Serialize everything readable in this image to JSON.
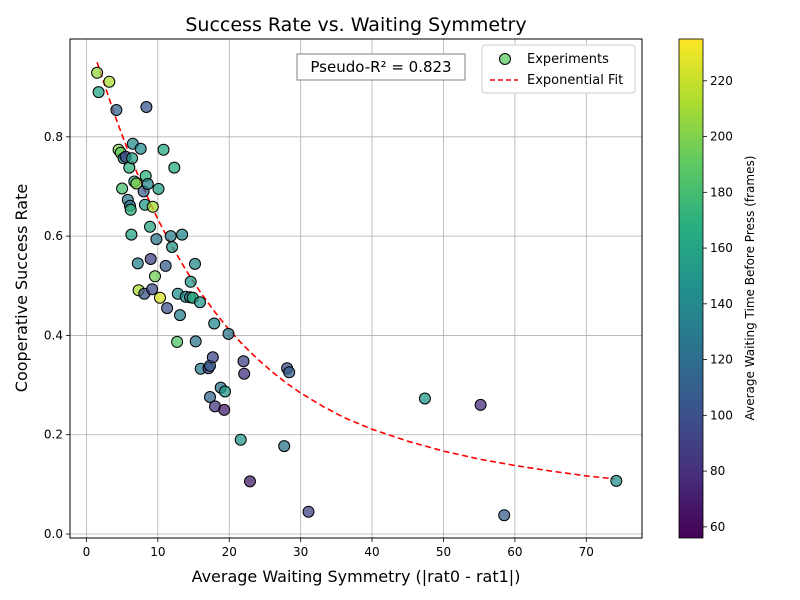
{
  "chart_data": {
    "type": "scatter",
    "title": "Success Rate vs. Waiting Symmetry",
    "xlabel": "Average Waiting Symmetry (|rat0 - rat1|)",
    "ylabel": "Cooperative Success Rate",
    "xlim": [
      -2.3,
      77.8
    ],
    "ylim": [
      -0.008,
      0.997
    ],
    "xticks": [
      0,
      10,
      20,
      30,
      40,
      50,
      60,
      70
    ],
    "yticks": [
      0.0,
      0.2,
      0.4,
      0.6,
      0.8
    ],
    "ytick_labels": [
      "0.0",
      "0.2",
      "0.4",
      "0.6",
      "0.8"
    ],
    "grid": true,
    "annotation": "Pseudo-R² = 0.823",
    "legend": {
      "placement": "upper-right",
      "entries": [
        {
          "label": "Experiments",
          "kind": "marker"
        },
        {
          "label": "Exponential Fit",
          "kind": "dashed-line"
        }
      ]
    },
    "colorbar": {
      "label": "Average Waiting Time Before Press (frames)",
      "range": [
        56,
        235
      ],
      "ticks": [
        60,
        80,
        100,
        120,
        140,
        160,
        180,
        200,
        220
      ],
      "colormap": "viridis"
    },
    "fit": {
      "name": "Exponential Fit",
      "color": "#ff0000",
      "x": [
        1.5,
        4,
        6,
        8,
        10,
        12,
        14,
        16,
        18,
        20,
        22,
        24,
        26,
        28,
        30,
        33,
        36,
        40,
        45,
        50,
        55,
        60,
        65,
        70,
        74
      ],
      "y": [
        0.95,
        0.842,
        0.765,
        0.696,
        0.634,
        0.579,
        0.53,
        0.486,
        0.447,
        0.411,
        0.38,
        0.352,
        0.327,
        0.304,
        0.284,
        0.258,
        0.235,
        0.211,
        0.187,
        0.167,
        0.151,
        0.138,
        0.127,
        0.117,
        0.111
      ]
    },
    "series": [
      {
        "name": "Experiments",
        "x": [
          1.5,
          1.7,
          3.2,
          4.2,
          4.5,
          4.8,
          5.0,
          5.2,
          5.5,
          5.8,
          6.0,
          6.1,
          6.2,
          6.3,
          6.4,
          6.5,
          6.7,
          7.0,
          7.2,
          7.3,
          7.6,
          8.0,
          8.1,
          8.2,
          8.3,
          8.4,
          8.6,
          8.9,
          9.0,
          9.2,
          9.3,
          9.6,
          9.8,
          10.1,
          10.3,
          10.8,
          11.1,
          11.3,
          11.8,
          12.0,
          12.3,
          12.7,
          12.8,
          13.1,
          13.4,
          13.9,
          14.5,
          14.6,
          14.9,
          15.2,
          15.3,
          15.9,
          16.0,
          17.1,
          17.3,
          17.3,
          17.7,
          17.9,
          18.0,
          18.8,
          19.3,
          19.4,
          19.9,
          21.6,
          22.0,
          22.1,
          22.9,
          27.7,
          28.1,
          28.4,
          31.1,
          47.4,
          55.2,
          58.5,
          74.2
        ],
        "y": [
          0.929,
          0.89,
          0.911,
          0.854,
          0.774,
          0.768,
          0.696,
          0.757,
          0.76,
          0.673,
          0.738,
          0.661,
          0.653,
          0.603,
          0.757,
          0.786,
          0.71,
          0.706,
          0.545,
          0.491,
          0.776,
          0.69,
          0.484,
          0.663,
          0.721,
          0.86,
          0.705,
          0.619,
          0.554,
          0.493,
          0.659,
          0.519,
          0.594,
          0.695,
          0.476,
          0.774,
          0.54,
          0.455,
          0.6,
          0.578,
          0.738,
          0.387,
          0.484,
          0.441,
          0.603,
          0.478,
          0.477,
          0.508,
          0.476,
          0.544,
          0.388,
          0.467,
          0.333,
          0.334,
          0.276,
          0.339,
          0.356,
          0.424,
          0.257,
          0.295,
          0.25,
          0.287,
          0.403,
          0.19,
          0.348,
          0.323,
          0.106,
          0.177,
          0.334,
          0.326,
          0.045,
          0.273,
          0.26,
          0.038,
          0.107
        ],
        "c": [
          205,
          160,
          212,
          115,
          200,
          190,
          180,
          140,
          95,
          128,
          170,
          125,
          172,
          160,
          155,
          140,
          165,
          200,
          135,
          210,
          140,
          110,
          100,
          150,
          170,
          105,
          140,
          160,
          90,
          95,
          210,
          195,
          125,
          155,
          225,
          165,
          110,
          100,
          130,
          150,
          165,
          185,
          145,
          135,
          140,
          145,
          125,
          150,
          170,
          140,
          125,
          150,
          130,
          90,
          115,
          110,
          95,
          140,
          85,
          125,
          70,
          150,
          125,
          150,
          90,
          80,
          70,
          125,
          95,
          110,
          90,
          150,
          80,
          110,
          145
        ]
      }
    ]
  }
}
